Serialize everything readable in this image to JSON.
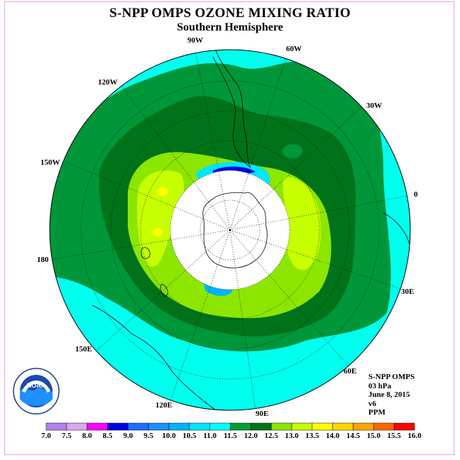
{
  "title": "S-NPP OMPS OZONE MIXING RATIO",
  "subtitle": "Southern Hemisphere",
  "longitude_labels": {
    "l0": "0",
    "l30w": "30W",
    "l60w": "60W",
    "l90w": "90W",
    "l120w": "120W",
    "l150w": "150W",
    "l180": "180",
    "l150e": "150E",
    "l120e": "120E",
    "l90e": "90E",
    "l60e": "60E",
    "l30e": "30E"
  },
  "info": {
    "product": "S-NPP OMPS",
    "level": "03 hPa",
    "date": "June 8, 2015",
    "version": "v6",
    "units": "PPM"
  },
  "logo": {
    "text": "NOAA",
    "ring_text": "NATIONAL OCEANIC AND ATMOSPHERIC ADMINISTRATION · U.S. DEPARTMENT OF COMMERCE"
  },
  "colorbar": {
    "ticks": [
      "7.0",
      "7.5",
      "8.0",
      "8.5",
      "9.0",
      "9.5",
      "10.0",
      "10.5",
      "11.0",
      "11.5",
      "12.0",
      "12.5",
      "13.0",
      "13.5",
      "14.0",
      "14.5",
      "15.0",
      "15.5",
      "16.0"
    ],
    "colors": [
      "#b380f0",
      "#d9a6f2",
      "#ff00ff",
      "#0000e6",
      "#1e6eff",
      "#1e90ff",
      "#00b4ff",
      "#00e6ff",
      "#00ffff",
      "#009e39",
      "#00731a",
      "#8ce600",
      "#c6ff00",
      "#ffff00",
      "#ffd700",
      "#ffa500",
      "#ff6600",
      "#ff0000",
      "#8b5a2b"
    ]
  }
}
